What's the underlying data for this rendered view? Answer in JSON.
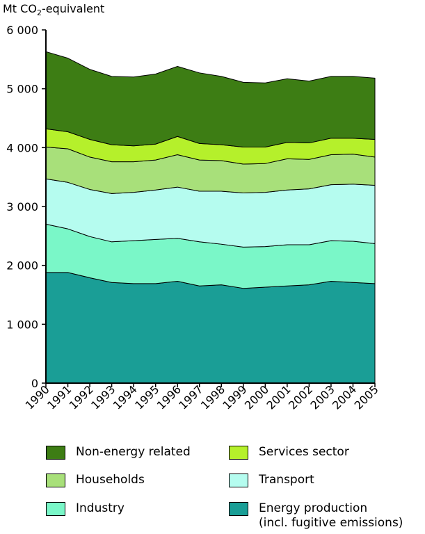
{
  "chart_data": {
    "type": "area",
    "stacked": true,
    "ylabel_prefix": "Mt CO",
    "ylabel_sub": "2",
    "ylabel_suffix": "-equivalent",
    "ylim": [
      0,
      6000
    ],
    "yticks": [
      0,
      1000,
      2000,
      3000,
      4000,
      5000,
      6000
    ],
    "ytick_labels": [
      "0",
      "1 000",
      "2 000",
      "3 000",
      "4 000",
      "5 000",
      "6 000"
    ],
    "x": [
      "1990",
      "1991",
      "1992",
      "1993",
      "1994",
      "1995",
      "1996",
      "1997",
      "1998",
      "1999",
      "2000",
      "2001",
      "2002",
      "2003",
      "2004",
      "2005"
    ],
    "series": [
      {
        "name": "Energy production",
        "name_line2": "(incl. fugitive emissions)",
        "color": "#1a9e96",
        "values": [
          1880,
          1880,
          1790,
          1710,
          1690,
          1690,
          1730,
          1650,
          1670,
          1610,
          1630,
          1650,
          1670,
          1730,
          1710,
          1690
        ]
      },
      {
        "name": "Industry",
        "color": "#7af7c8",
        "values": [
          820,
          740,
          700,
          690,
          730,
          750,
          730,
          750,
          690,
          700,
          690,
          700,
          680,
          690,
          700,
          680
        ]
      },
      {
        "name": "Transport",
        "color": "#b5fcef",
        "values": [
          770,
          790,
          800,
          820,
          820,
          840,
          870,
          860,
          900,
          920,
          920,
          930,
          950,
          950,
          970,
          990
        ]
      },
      {
        "name": "Households",
        "color": "#a8e07a",
        "values": [
          540,
          570,
          550,
          540,
          520,
          510,
          550,
          530,
          520,
          490,
          490,
          530,
          500,
          510,
          510,
          480
        ]
      },
      {
        "name": "Services sector",
        "color": "#b5f02b",
        "values": [
          310,
          290,
          300,
          290,
          270,
          270,
          310,
          280,
          270,
          290,
          280,
          280,
          280,
          280,
          270,
          300
        ]
      },
      {
        "name": "Non-energy related",
        "color": "#3d7d14",
        "values": [
          1310,
          1250,
          1190,
          1160,
          1170,
          1190,
          1190,
          1200,
          1160,
          1100,
          1090,
          1080,
          1050,
          1050,
          1050,
          1040
        ]
      }
    ],
    "legend_order": [
      5,
      4,
      3,
      2,
      1,
      0
    ]
  }
}
